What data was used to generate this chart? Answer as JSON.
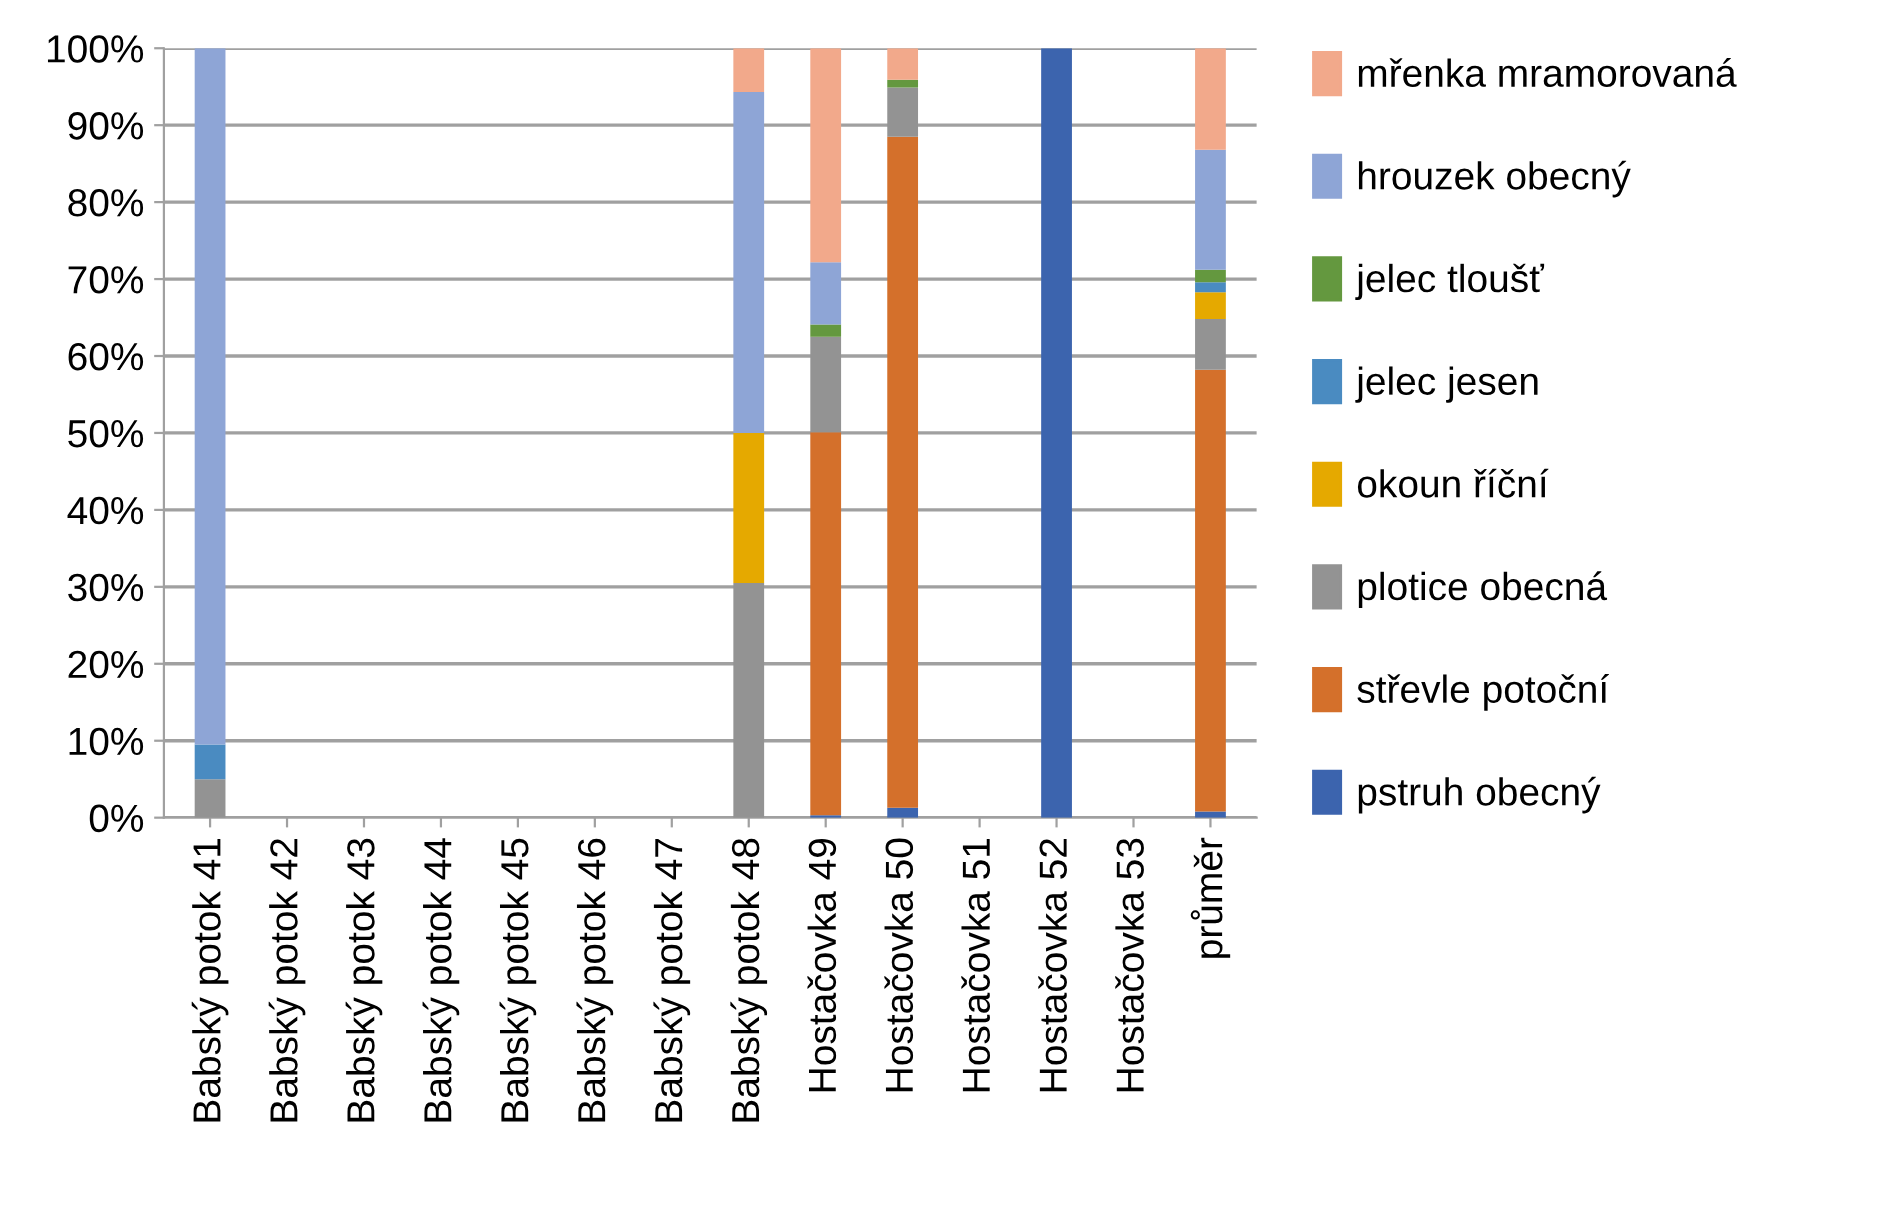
{
  "chart_data": {
    "type": "bar",
    "stacked": true,
    "categories": [
      "Babský potok 41",
      "Babský potok 42",
      "Babský potok 43",
      "Babský potok 44",
      "Babský potok 45",
      "Babský potok 46",
      "Babský potok 47",
      "Babský potok 48",
      "Hostačovka 49",
      "Hostačovka 50",
      "Hostačovka 51",
      "Hostačovka 52",
      "Hostačovka 53",
      "průměr"
    ],
    "series": [
      {
        "name": "pstruh obecný",
        "color": "#3c64ae",
        "values": [
          null,
          null,
          null,
          null,
          null,
          null,
          null,
          null,
          0.3,
          1.3,
          null,
          100,
          null,
          0.8
        ]
      },
      {
        "name": "střevle potoční",
        "color": "#d4702b",
        "values": [
          null,
          null,
          null,
          null,
          null,
          null,
          null,
          null,
          49.8,
          87.2,
          null,
          null,
          null,
          57.4
        ]
      },
      {
        "name": "plotice obecná",
        "color": "#939393",
        "values": [
          5,
          null,
          null,
          null,
          null,
          null,
          null,
          30.5,
          12.4,
          6.4,
          null,
          null,
          null,
          6.6
        ]
      },
      {
        "name": "okoun říční",
        "color": "#e5a900",
        "values": [
          null,
          null,
          null,
          null,
          null,
          null,
          null,
          19.5,
          null,
          null,
          null,
          null,
          null,
          3.5
        ]
      },
      {
        "name": "jelec jesen",
        "color": "#4a8bc1",
        "values": [
          4.5,
          null,
          null,
          null,
          null,
          null,
          null,
          null,
          null,
          null,
          null,
          null,
          null,
          1.3
        ]
      },
      {
        "name": "jelec tloušť",
        "color": "#64983f",
        "values": [
          null,
          null,
          null,
          null,
          null,
          null,
          null,
          null,
          1.6,
          1.0,
          null,
          null,
          null,
          1.6
        ]
      },
      {
        "name": "hrouzek obecný",
        "color": "#8ea5d6",
        "values": [
          90.5,
          null,
          null,
          null,
          null,
          null,
          null,
          44.3,
          8.1,
          null,
          null,
          null,
          null,
          15.6
        ]
      },
      {
        "name": "mřenka mramorovaná",
        "color": "#f2a98b",
        "values": [
          null,
          null,
          null,
          null,
          null,
          null,
          null,
          5.7,
          27.8,
          4.1,
          null,
          null,
          null,
          13.2
        ]
      }
    ],
    "ylim": [
      0,
      100
    ],
    "yticks": [
      {
        "value": 0,
        "label": "0%"
      },
      {
        "value": 10,
        "label": "10%"
      },
      {
        "value": 20,
        "label": "20%"
      },
      {
        "value": 30,
        "label": "30%"
      },
      {
        "value": 40,
        "label": "40%"
      },
      {
        "value": 50,
        "label": "50%"
      },
      {
        "value": 60,
        "label": "60%"
      },
      {
        "value": 70,
        "label": "70%"
      },
      {
        "value": 80,
        "label": "80%"
      },
      {
        "value": 90,
        "label": "90%"
      },
      {
        "value": 100,
        "label": "100%"
      }
    ],
    "grid": "y",
    "legend": "right"
  }
}
